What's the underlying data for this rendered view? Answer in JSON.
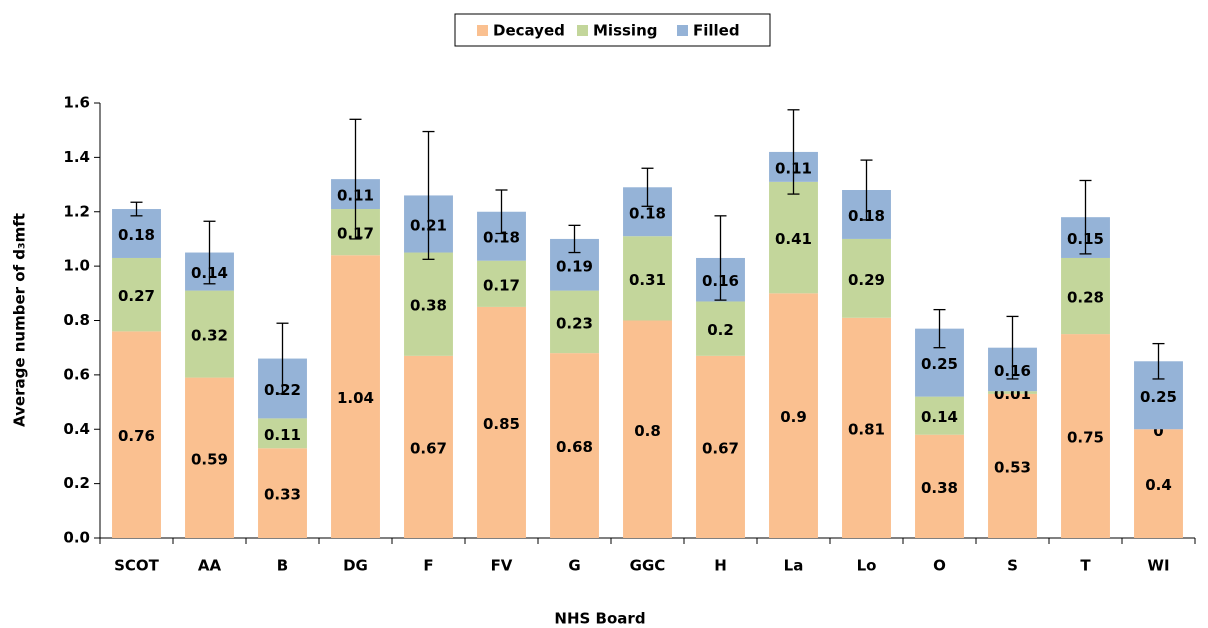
{
  "chart_data": {
    "type": "stacked-bar",
    "x_label": "NHS Board",
    "y_label": "Average number of d₃mft",
    "categories": [
      "SCOT",
      "AA",
      "B",
      "DG",
      "F",
      "FV",
      "G",
      "GGC",
      "H",
      "La",
      "Lo",
      "O",
      "S",
      "T",
      "WI"
    ],
    "series": [
      {
        "name": "Decayed",
        "color": "#fac090",
        "values": [
          0.76,
          0.59,
          0.33,
          1.04,
          0.67,
          0.85,
          0.68,
          0.8,
          0.67,
          0.9,
          0.81,
          0.38,
          0.53,
          0.75,
          0.4
        ]
      },
      {
        "name": "Missing",
        "color": "#c3d69b",
        "values": [
          0.27,
          0.32,
          0.11,
          0.17,
          0.38,
          0.17,
          0.23,
          0.31,
          0.2,
          0.41,
          0.29,
          0.14,
          0.01,
          0.28,
          0
        ]
      },
      {
        "name": "Filled",
        "color": "#95b3d7",
        "values": [
          0.18,
          0.14,
          0.22,
          0.11,
          0.21,
          0.18,
          0.19,
          0.18,
          0.16,
          0.11,
          0.18,
          0.25,
          0.16,
          0.15,
          0.25
        ],
        "errors": [
          0.025,
          0.115,
          0.13,
          0.22,
          0.235,
          0.08,
          0.05,
          0.07,
          0.155,
          0.155,
          0.11,
          0.07,
          0.115,
          0.135,
          0.065
        ]
      }
    ],
    "ylim": [
      0,
      1.6
    ],
    "yticks": [
      {
        "value": 0,
        "label": "0.0"
      },
      0.2,
      0.4,
      0.6,
      0.8,
      {
        "value": 1,
        "label": "1.0"
      },
      1.2,
      1.4,
      1.6
    ],
    "legend": "top",
    "grid": false
  }
}
